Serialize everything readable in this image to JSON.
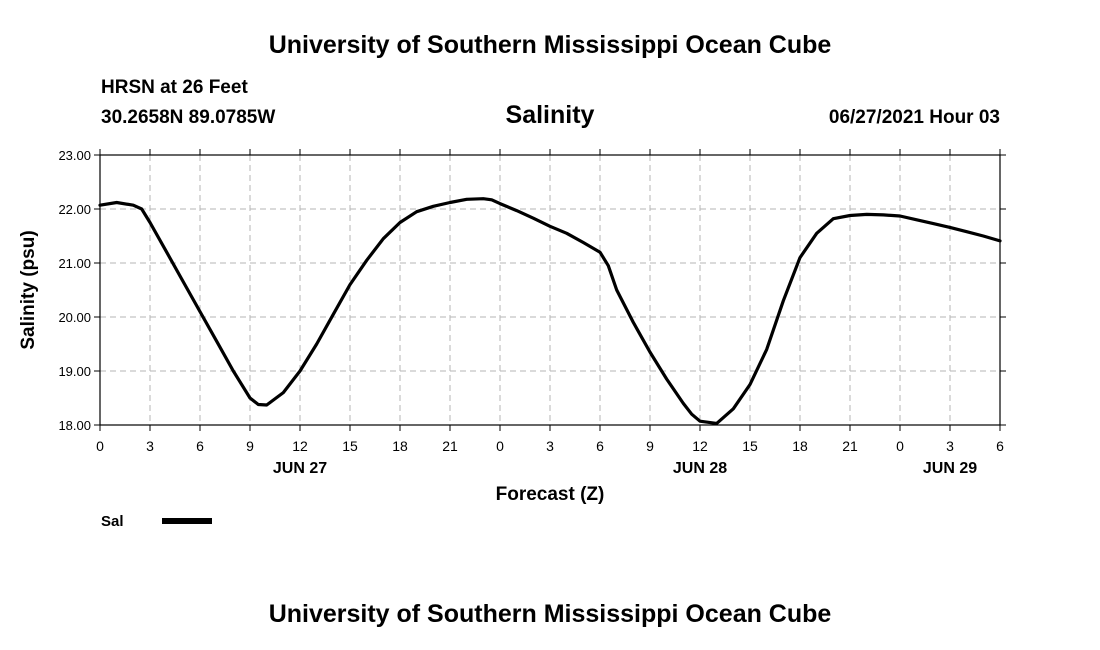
{
  "header": {
    "title_top": "University of Southern Mississippi Ocean Cube",
    "station": "HRSN at 26 Feet",
    "coords": "30.2658N  89.0785W",
    "parameter": "Salinity",
    "datetime": "06/27/2021 Hour 03",
    "title_bottom": "University of Southern Mississippi Ocean Cube"
  },
  "chart_data": {
    "type": "line",
    "xlabel": "Forecast (Z)",
    "ylabel": "Salinity (psu)",
    "ylim": [
      18,
      23
    ],
    "xlim": [
      0,
      54
    ],
    "x_unit": "hours from 00Z Jun 27",
    "yticks": [
      "18.00",
      "19.00",
      "20.00",
      "21.00",
      "22.00",
      "23.00"
    ],
    "xticks": [
      "0",
      "3",
      "6",
      "9",
      "12",
      "15",
      "18",
      "21",
      "0",
      "3",
      "6",
      "9",
      "12",
      "15",
      "18",
      "21",
      "0",
      "3",
      "6"
    ],
    "date_labels": [
      {
        "text": "JUN 27",
        "x": 12
      },
      {
        "text": "JUN 28",
        "x": 36
      },
      {
        "text": "JUN 29",
        "x": 51
      }
    ],
    "grid": true,
    "legend_position": "bottom-left",
    "series": [
      {
        "name": "Sal",
        "color": "#000000",
        "x": [
          0,
          1,
          2,
          2.5,
          3,
          4,
          5,
          6,
          7,
          8,
          9,
          9.5,
          10,
          11,
          12,
          13,
          14,
          15,
          16,
          17,
          18,
          19,
          20,
          21,
          22,
          23,
          23.5,
          24,
          25,
          26,
          27,
          28,
          29,
          30,
          30.5,
          31,
          32,
          33,
          34,
          35,
          35.5,
          36,
          37,
          38,
          39,
          40,
          41,
          42,
          43,
          44,
          45,
          46,
          47,
          48,
          49,
          50,
          51,
          52,
          53,
          54
        ],
        "y": [
          22.07,
          22.12,
          22.07,
          22.0,
          21.75,
          21.2,
          20.65,
          20.1,
          19.55,
          19.0,
          18.5,
          18.38,
          18.37,
          18.6,
          19.0,
          19.5,
          20.05,
          20.6,
          21.05,
          21.45,
          21.75,
          21.95,
          22.05,
          22.12,
          22.18,
          22.19,
          22.17,
          22.1,
          21.97,
          21.83,
          21.68,
          21.55,
          21.38,
          21.2,
          20.95,
          20.5,
          19.9,
          19.35,
          18.85,
          18.4,
          18.2,
          18.07,
          18.03,
          18.3,
          18.75,
          19.4,
          20.3,
          21.1,
          21.55,
          21.82,
          21.88,
          21.9,
          21.89,
          21.87,
          21.8,
          21.73,
          21.66,
          21.58,
          21.5,
          21.41
        ]
      }
    ]
  }
}
